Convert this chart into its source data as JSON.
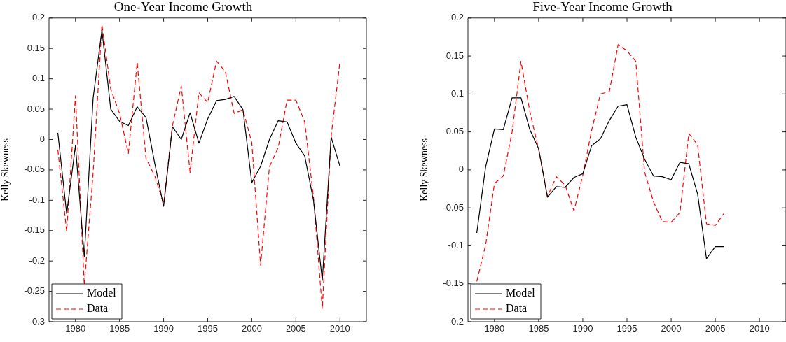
{
  "chart_data": [
    {
      "type": "line",
      "title": "One-Year Income Growth",
      "ylabel": "Kelly Skewness",
      "legend": "bottom left",
      "x": [
        1978,
        1979,
        1980,
        1981,
        1982,
        1983,
        1984,
        1985,
        1986,
        1987,
        1988,
        1989,
        1990,
        1991,
        1992,
        1993,
        1994,
        1995,
        1996,
        1997,
        1998,
        1999,
        2000,
        2001,
        2002,
        2003,
        2004,
        2005,
        2006,
        2007,
        2008,
        2009,
        2010
      ],
      "xlim": [
        1977,
        2013
      ],
      "xticks": [
        1980,
        1985,
        1990,
        1995,
        2000,
        2005,
        2010
      ],
      "ylim": [
        -0.3,
        0.2
      ],
      "yticks": [
        -0.3,
        -0.25,
        -0.2,
        -0.15,
        -0.1,
        -0.05,
        0,
        0.05,
        0.1,
        0.15,
        0.2
      ],
      "series": [
        {
          "name": "Model",
          "color": "#000000",
          "line_style": "solid",
          "values": [
            0.011,
            -0.122,
            -0.01,
            -0.193,
            0.068,
            0.18,
            0.05,
            0.03,
            0.023,
            0.054,
            0.036,
            -0.04,
            -0.11,
            0.021,
            0.0,
            0.044,
            -0.006,
            0.034,
            0.064,
            0.066,
            0.071,
            0.049,
            -0.071,
            -0.044,
            0.0,
            0.031,
            0.029,
            -0.006,
            -0.027,
            -0.1,
            -0.232,
            0.004,
            -0.044
          ]
        },
        {
          "name": "Data",
          "color": "#ff0000",
          "line_style": "dashed",
          "values": [
            -0.017,
            -0.151,
            0.072,
            -0.24,
            -0.055,
            0.189,
            0.083,
            0.043,
            -0.023,
            0.127,
            -0.031,
            -0.06,
            -0.106,
            0.023,
            0.088,
            -0.054,
            0.077,
            0.061,
            0.129,
            0.112,
            0.043,
            0.049,
            -0.005,
            -0.207,
            -0.045,
            -0.013,
            0.065,
            0.065,
            0.029,
            -0.095,
            -0.279,
            0.005,
            0.128
          ]
        }
      ]
    },
    {
      "type": "line",
      "title": "Five-Year Income Growth",
      "ylabel": "Kelly Skewness",
      "legend": "bottom left",
      "x": [
        1978,
        1979,
        1980,
        1981,
        1982,
        1983,
        1984,
        1985,
        1986,
        1987,
        1988,
        1989,
        1990,
        1991,
        1992,
        1993,
        1994,
        1995,
        1996,
        1997,
        1998,
        1999,
        2000,
        2001,
        2002,
        2003,
        2004,
        2005,
        2006
      ],
      "xlim": [
        1977,
        2013
      ],
      "xticks": [
        1980,
        1985,
        1990,
        1995,
        2000,
        2005,
        2010
      ],
      "ylim": [
        -0.2,
        0.2
      ],
      "yticks": [
        -0.2,
        -0.15,
        -0.1,
        -0.05,
        0,
        0.05,
        0.1,
        0.15,
        0.2
      ],
      "series": [
        {
          "name": "Model",
          "color": "#000000",
          "line_style": "solid",
          "values": [
            -0.083,
            0.004,
            0.054,
            0.053,
            0.095,
            0.095,
            0.053,
            0.028,
            -0.036,
            -0.022,
            -0.023,
            -0.01,
            -0.005,
            0.032,
            0.041,
            0.065,
            0.084,
            0.086,
            0.043,
            0.014,
            -0.008,
            -0.009,
            -0.013,
            0.01,
            0.008,
            -0.032,
            -0.117,
            -0.101,
            -0.101
          ]
        },
        {
          "name": "Data",
          "color": "#ff0000",
          "line_style": "dashed",
          "values": [
            -0.147,
            -0.099,
            -0.018,
            -0.008,
            0.05,
            0.143,
            0.077,
            0.027,
            -0.035,
            -0.009,
            -0.02,
            -0.054,
            -0.007,
            0.052,
            0.1,
            0.103,
            0.165,
            0.157,
            0.143,
            -0.003,
            -0.042,
            -0.068,
            -0.069,
            -0.056,
            0.048,
            0.033,
            -0.071,
            -0.073,
            -0.057
          ]
        }
      ]
    }
  ]
}
